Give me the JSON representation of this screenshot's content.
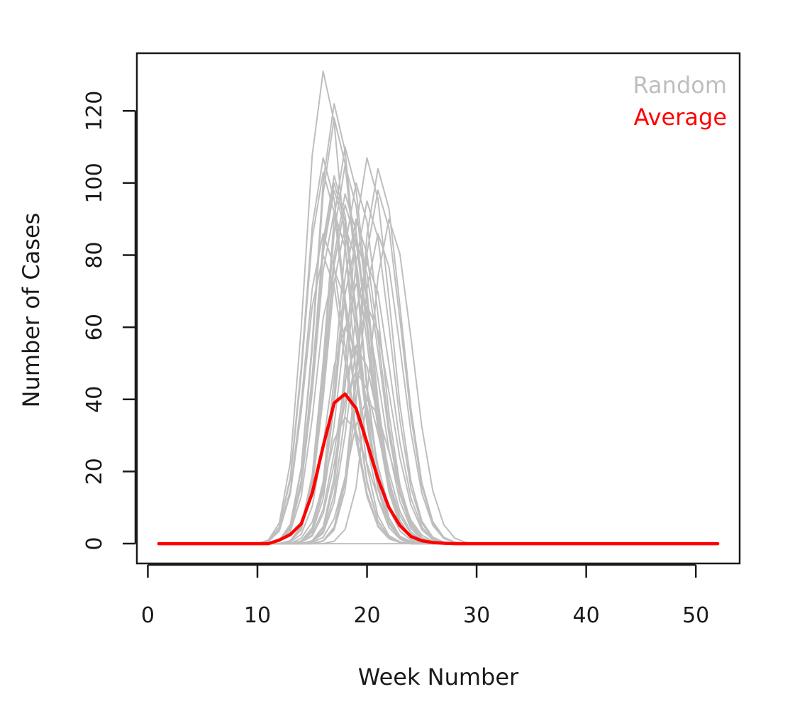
{
  "chart_data": {
    "type": "line",
    "title": "",
    "xlabel": "Week Number",
    "ylabel": "Number of Cases",
    "xlim": [
      -1,
      54
    ],
    "ylim": [
      -5.5,
      136
    ],
    "x_ticks": [
      0,
      10,
      20,
      30,
      40,
      50
    ],
    "y_ticks": [
      0,
      20,
      40,
      60,
      80,
      100,
      120
    ],
    "grid": false,
    "legend": {
      "position": "top-right",
      "entries": [
        {
          "label": "Random",
          "color": "#bebebe"
        },
        {
          "label": "Average",
          "color": "#ff0000"
        }
      ]
    },
    "average": {
      "name": "Average",
      "color": "#ff0000",
      "x": [
        1,
        2,
        3,
        4,
        5,
        6,
        7,
        8,
        9,
        10,
        11,
        12,
        13,
        14,
        15,
        16,
        17,
        18,
        19,
        20,
        21,
        22,
        23,
        24,
        25,
        26,
        27,
        28,
        29,
        30,
        31,
        32,
        33,
        34,
        35,
        36,
        37,
        38,
        39,
        40,
        41,
        42,
        43,
        44,
        45,
        46,
        47,
        48,
        49,
        50,
        51,
        52
      ],
      "y": [
        0,
        0,
        0,
        0,
        0,
        0,
        0,
        0,
        0,
        0,
        0,
        1,
        2.5,
        5.5,
        14,
        27,
        39,
        41.5,
        37.5,
        28,
        18,
        10,
        5,
        2,
        0.8,
        0.3,
        0.1,
        0,
        0,
        0,
        0,
        0,
        0,
        0,
        0,
        0,
        0,
        0,
        0,
        0,
        0,
        0,
        0,
        0,
        0,
        0,
        0,
        0,
        0,
        0,
        0,
        0
      ]
    },
    "random": {
      "name": "Random",
      "color": "#bebebe",
      "runs": [
        {
          "peak_week": 16,
          "peak": 131
        },
        {
          "peak_week": 17,
          "peak": 122
        },
        {
          "peak_week": 16,
          "peak": 107
        },
        {
          "peak_week": 17,
          "peak": 118
        },
        {
          "peak_week": 18,
          "peak": 110
        },
        {
          "peak_week": 18,
          "peak": 105
        },
        {
          "peak_week": 20,
          "peak": 107
        },
        {
          "peak_week": 21,
          "peak": 104
        },
        {
          "peak_week": 19,
          "peak": 100
        },
        {
          "peak_week": 21,
          "peak": 98
        },
        {
          "peak_week": 22,
          "peak": 90
        },
        {
          "peak_week": 17,
          "peak": 98
        },
        {
          "peak_week": 17,
          "peak": 92
        },
        {
          "peak_week": 16,
          "peak": 86
        },
        {
          "peak_week": 18,
          "peak": 94
        },
        {
          "peak_week": 19,
          "peak": 84
        },
        {
          "peak_week": 20,
          "peak": 95
        },
        {
          "peak_week": 16,
          "peak": 80
        },
        {
          "peak_week": 17,
          "peak": 76
        },
        {
          "peak_week": 18,
          "peak": 88
        },
        {
          "peak_week": 19,
          "peak": 72
        },
        {
          "peak_week": 20,
          "peak": 66
        },
        {
          "peak_week": 18,
          "peak": 60
        },
        {
          "peak_week": 17,
          "peak": 102
        },
        {
          "peak_week": 19,
          "peak": 55
        },
        {
          "peak_week": 19,
          "peak": 48
        },
        {
          "peak_week": 20,
          "peak": 40
        },
        {
          "peak_week": 18,
          "peak": 35
        },
        {
          "peak_week": 21,
          "peak": 86
        },
        {
          "peak_week": 17,
          "peak": 100
        },
        {
          "peak_week": 18,
          "peak": 97
        },
        {
          "peak_week": 16,
          "peak": 103
        },
        {
          "peak_week": 19,
          "peak": 90
        },
        {
          "peak_week": 20,
          "peak": 78
        },
        {
          "peak_week": 18,
          "peak": 0
        }
      ]
    }
  }
}
